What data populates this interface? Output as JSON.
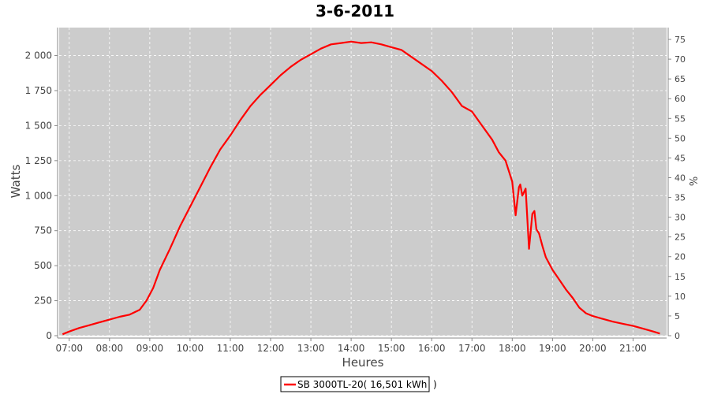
{
  "chart_data": {
    "type": "line",
    "title": "3-6-2011",
    "xlabel": "Heures",
    "ylabel": "Watts",
    "y2label": "%",
    "x_ticks": [
      "07:00",
      "08:00",
      "09:00",
      "10:00",
      "11:00",
      "12:00",
      "13:00",
      "14:00",
      "15:00",
      "16:00",
      "17:00",
      "18:00",
      "19:00",
      "20:00",
      "21:00"
    ],
    "xlim": [
      "06:45",
      "21:50"
    ],
    "ylim": [
      0,
      2200
    ],
    "y_ticks": [
      "0",
      "250",
      "500",
      "750",
      "1 000",
      "1 250",
      "1 500",
      "1 750",
      "2 000"
    ],
    "y2lim": [
      0,
      78
    ],
    "y2_ticks": [
      "0",
      "5",
      "10",
      "15",
      "20",
      "25",
      "30",
      "35",
      "40",
      "45",
      "50",
      "55",
      "60",
      "65",
      "70",
      "75"
    ],
    "grid": true,
    "background_color": "#cccccc",
    "series_color": "#ff0000",
    "legend": "bottom-center",
    "series": [
      {
        "name": "SB 3000TL-20( 16,501 kWh  )",
        "x": [
          "06:50",
          "07:00",
          "07:15",
          "07:30",
          "07:45",
          "08:00",
          "08:15",
          "08:30",
          "08:45",
          "08:55",
          "09:05",
          "09:15",
          "09:30",
          "09:45",
          "10:00",
          "10:15",
          "10:30",
          "10:45",
          "11:00",
          "11:15",
          "11:30",
          "11:45",
          "12:00",
          "12:15",
          "12:30",
          "12:45",
          "13:00",
          "13:15",
          "13:30",
          "13:45",
          "14:00",
          "14:15",
          "14:30",
          "14:45",
          "15:00",
          "15:15",
          "15:30",
          "15:45",
          "16:00",
          "16:15",
          "16:30",
          "16:45",
          "17:00",
          "17:15",
          "17:30",
          "17:40",
          "17:50",
          "18:00",
          "18:05",
          "18:10",
          "18:12",
          "18:15",
          "18:20",
          "18:25",
          "18:30",
          "18:33",
          "18:36",
          "18:40",
          "18:45",
          "18:50",
          "19:00",
          "19:10",
          "19:20",
          "19:30",
          "19:40",
          "19:50",
          "20:00",
          "20:15",
          "20:30",
          "20:45",
          "21:00",
          "21:15",
          "21:30",
          "21:40"
        ],
        "y": [
          10,
          30,
          55,
          75,
          95,
          115,
          135,
          150,
          185,
          250,
          340,
          470,
          620,
          780,
          920,
          1060,
          1200,
          1330,
          1430,
          1540,
          1640,
          1720,
          1790,
          1860,
          1920,
          1970,
          2010,
          2050,
          2080,
          2090,
          2100,
          2090,
          2095,
          2080,
          2060,
          2040,
          1990,
          1940,
          1890,
          1820,
          1740,
          1640,
          1600,
          1500,
          1400,
          1310,
          1250,
          1100,
          860,
          1060,
          1080,
          1000,
          1050,
          620,
          870,
          890,
          760,
          730,
          640,
          560,
          470,
          400,
          330,
          270,
          200,
          160,
          140,
          120,
          100,
          85,
          70,
          50,
          30,
          15
        ]
      }
    ]
  }
}
